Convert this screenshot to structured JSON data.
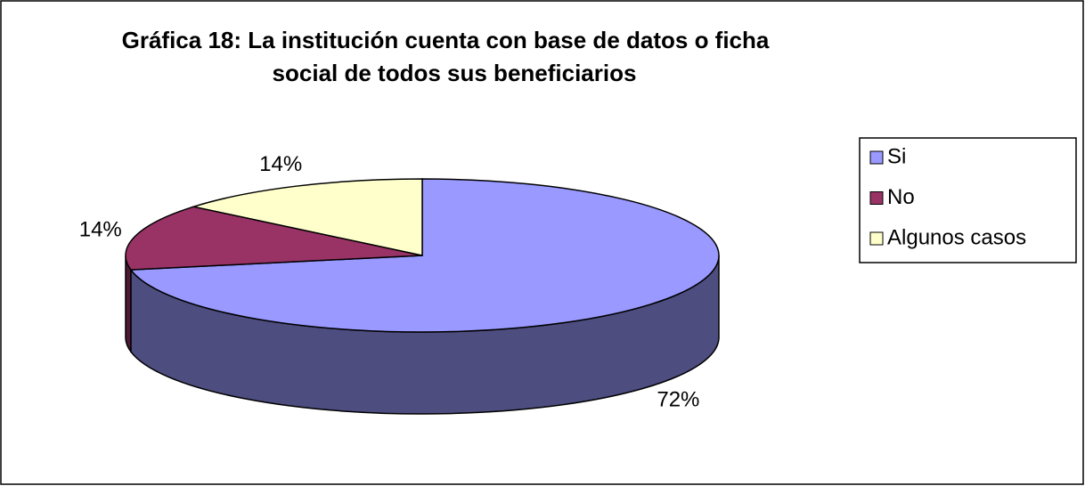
{
  "chart_data": {
    "type": "pie3d",
    "title": [
      "Gráfica 18: La institución cuenta con base de datos o ficha",
      "social de todos sus beneficiarios"
    ],
    "categories": [
      "Si",
      "No",
      "Algunos casos"
    ],
    "values": [
      72,
      14,
      14
    ],
    "value_labels": [
      "72%",
      "14%",
      "14%"
    ],
    "colors": [
      "#9999ff",
      "#993366",
      "#ffffcc"
    ],
    "legend": "right"
  }
}
